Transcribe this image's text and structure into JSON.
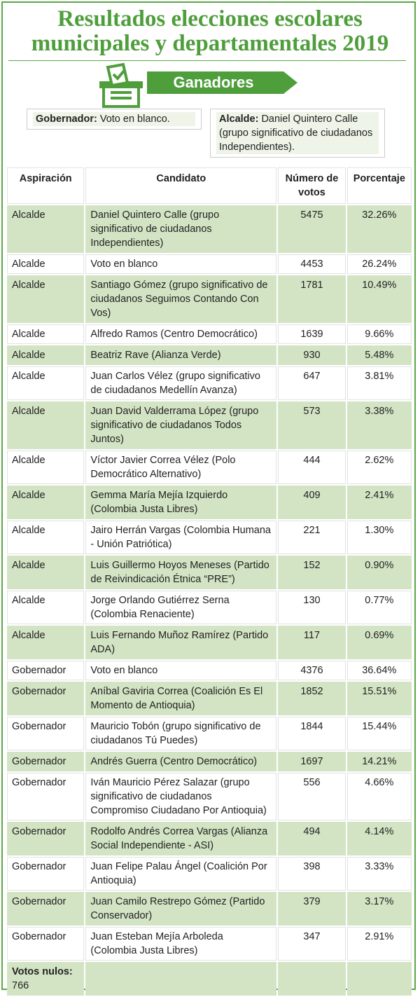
{
  "header": {
    "title_lines": [
      "Resultados elecciones escolares",
      "municipales y departamentales 2019"
    ],
    "banner": "Ganadores"
  },
  "winners": [
    {
      "label": "Gobernador:",
      "text": "Voto en blanco."
    },
    {
      "label": "Alcalde:",
      "text": "Daniel Quintero Calle (grupo significativo de ciudadanos Independientes)."
    }
  ],
  "table": {
    "columns": [
      "Aspiración",
      "Candidato",
      "Número de votos",
      "Porcentaje"
    ],
    "rows": [
      [
        "Alcalde",
        "Daniel Quintero Calle (grupo significativo de ciudadanos Independientes)",
        "5475",
        "32.26%"
      ],
      [
        "Alcalde",
        "Voto en blanco",
        "4453",
        "26.24%"
      ],
      [
        "Alcalde",
        "Santiago Gómez (grupo significativo de ciudadanos Seguimos Contando Con Vos)",
        "1781",
        "10.49%"
      ],
      [
        "Alcalde",
        "Alfredo Ramos (Centro Democrático)",
        "1639",
        "9.66%"
      ],
      [
        "Alcalde",
        "Beatriz Rave (Alianza Verde)",
        "930",
        "5.48%"
      ],
      [
        "Alcalde",
        "Juan Carlos Vélez (grupo significativo de ciudadanos Medellín Avanza)",
        "647",
        "3.81%"
      ],
      [
        "Alcalde",
        "Juan David Valderrama López (grupo significativo de ciudadanos Todos Juntos)",
        "573",
        "3.38%"
      ],
      [
        "Alcalde",
        "Víctor Javier Correa Vélez (Polo Democrático Alternativo)",
        "444",
        "2.62%"
      ],
      [
        "Alcalde",
        "Gemma María Mejía Izquierdo (Colombia Justa Libres)",
        "409",
        "2.41%"
      ],
      [
        "Alcalde",
        "Jairo Herrán Vargas (Colombia Humana - Unión Patriótica)",
        "221",
        "1.30%"
      ],
      [
        "Alcalde",
        "Luis Guillermo Hoyos Meneses (Partido de Reivindicación Étnica “PRE”)",
        "152",
        "0.90%"
      ],
      [
        "Alcalde",
        "Jorge Orlando Gutiérrez Serna (Colombia Renaciente)",
        "130",
        "0.77%"
      ],
      [
        "Alcalde",
        "Luis Fernando Muñoz Ramírez (Partido ADA)",
        "117",
        "0.69%"
      ],
      [
        "Gobernador",
        "Voto en blanco",
        "4376",
        "36.64%"
      ],
      [
        "Gobernador",
        "Aníbal Gaviria Correa (Coalición Es El Momento de Antioquia)",
        "1852",
        "15.51%"
      ],
      [
        "Gobernador",
        "Mauricio Tobón (grupo significativo de ciudadanos Tú Puedes)",
        "1844",
        "15.44%"
      ],
      [
        "Gobernador",
        "Andrés Guerra (Centro Democrático)",
        "1697",
        "14.21%"
      ],
      [
        "Gobernador",
        "Iván Mauricio Pérez Salazar (grupo significativo de ciudadanos Compromiso Ciudadano Por Antioquia)",
        "556",
        "4.66%"
      ],
      [
        "Gobernador",
        "Rodolfo Andrés Correa Vargas (Alianza Social Independiente - ASI)",
        "494",
        "4.14%"
      ],
      [
        "Gobernador",
        "Juan Felipe Palau Ángel (Coalición Por Antioquia)",
        "398",
        "3.33%"
      ],
      [
        "Gobernador",
        "Juan Camilo Restrepo Gómez (Partido Conservador)",
        "379",
        "3.17%"
      ],
      [
        "Gobernador",
        "Juan Esteban Mejía Arboleda (Colombia Justa Libres)",
        "347",
        "2.91%"
      ]
    ],
    "footer": {
      "label": "Votos nulos:",
      "value": "766"
    }
  }
}
